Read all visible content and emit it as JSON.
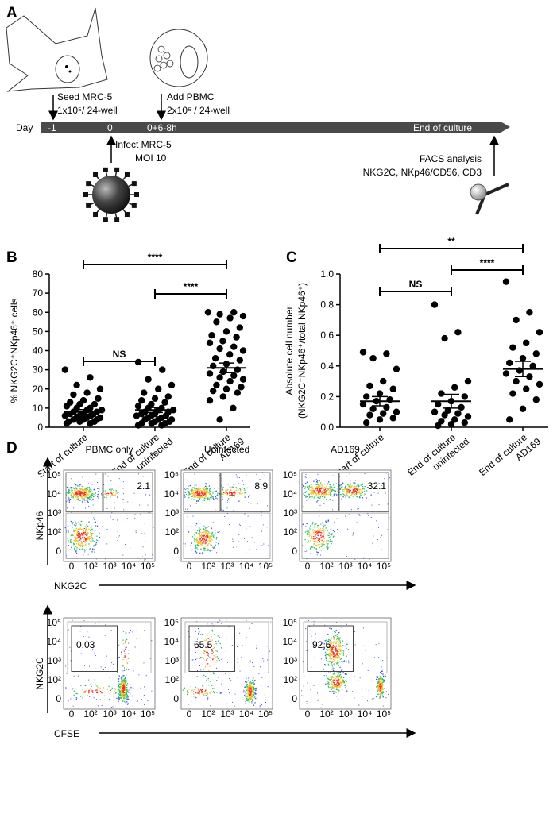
{
  "diagram": {
    "label": "A",
    "day": "Day",
    "days": [
      "-1",
      "0",
      "0+6-8h",
      "End of culture"
    ],
    "seed": [
      "Seed  MRC-5",
      "1x10⁵/ 24-well"
    ],
    "pbmc": [
      "Add PBMC",
      "2x10⁶ / 24-well"
    ],
    "infect": [
      "Infect MRC-5",
      "MOI 10"
    ],
    "facs": [
      "FACS analysis",
      "NKG2C, NKp46/CD56, CD3"
    ]
  },
  "chart_data": [
    {
      "type": "scatter",
      "label": "B",
      "ylabel": [
        "% NKG2C⁺NKp46⁺ cells"
      ],
      "categories": [
        [
          "Start of culture"
        ],
        [
          "End of culture",
          "uninfected"
        ],
        [
          "End of culture",
          "AD169"
        ]
      ],
      "series": [
        {
          "color": "#000000",
          "values": [
            30,
            26,
            22,
            20,
            18,
            17,
            15,
            14,
            13,
            12,
            12,
            11,
            10,
            10,
            9,
            9,
            8,
            8,
            7,
            7,
            7,
            6,
            6,
            6,
            5,
            5,
            5,
            4,
            4,
            4,
            3,
            3,
            3,
            2,
            2
          ]
        },
        {
          "color": "#000000",
          "values": [
            34,
            30,
            25,
            22,
            20,
            18,
            16,
            15,
            14,
            13,
            12,
            11,
            10,
            10,
            9,
            9,
            8,
            8,
            7,
            7,
            6,
            6,
            6,
            5,
            5,
            4,
            4,
            4,
            3,
            3,
            2,
            2,
            2,
            1,
            1
          ]
        },
        {
          "color": "#000000",
          "values": [
            60,
            60,
            59,
            58,
            57,
            55,
            52,
            50,
            48,
            47,
            45,
            44,
            42,
            41,
            40,
            38,
            36,
            35,
            33,
            32,
            30,
            29,
            28,
            27,
            26,
            25,
            24,
            22,
            21,
            20,
            19,
            18,
            16,
            14,
            10,
            4
          ]
        }
      ],
      "means": [
        8,
        9,
        31
      ],
      "sem": [
        1.2,
        1.3,
        2.5
      ],
      "significance": [
        "****",
        "****",
        "NS"
      ],
      "ylim": [
        0,
        80
      ],
      "yticks": [
        0,
        10,
        20,
        30,
        40,
        50,
        60,
        70,
        80
      ]
    },
    {
      "type": "scatter",
      "label": "C",
      "ylabel": [
        "Absolute cell number",
        "(NKG2C⁺NKp46⁺/total NKp46⁺)"
      ],
      "categories": [
        [
          "Start of culture"
        ],
        [
          "End of culture",
          "uninfected"
        ],
        [
          "End of culture",
          "AD169"
        ]
      ],
      "series": [
        {
          "color": "#000000",
          "values": [
            0.49,
            0.48,
            0.45,
            0.38,
            0.3,
            0.27,
            0.25,
            0.22,
            0.2,
            0.18,
            0.17,
            0.15,
            0.13,
            0.12,
            0.1,
            0.09,
            0.08,
            0.06,
            0.05,
            0.03
          ]
        },
        {
          "color": "#000000",
          "values": [
            0.8,
            0.62,
            0.58,
            0.3,
            0.26,
            0.22,
            0.2,
            0.17,
            0.15,
            0.13,
            0.11,
            0.1,
            0.09,
            0.08,
            0.07,
            0.05,
            0.04,
            0.03,
            0.02,
            0.01
          ]
        },
        {
          "color": "#000000",
          "values": [
            0.95,
            0.75,
            0.7,
            0.62,
            0.55,
            0.52,
            0.48,
            0.45,
            0.42,
            0.4,
            0.37,
            0.35,
            0.33,
            0.3,
            0.28,
            0.25,
            0.22,
            0.18,
            0.12,
            0.05
          ]
        }
      ],
      "means": [
        0.17,
        0.17,
        0.38
      ],
      "sem": [
        0.03,
        0.045,
        0.05
      ],
      "significance": [
        "**",
        "****",
        "NS"
      ],
      "ylim": [
        0,
        1.0
      ],
      "yticks": [
        {
          "value": 0,
          "label": "0.0"
        },
        {
          "value": 0.2,
          "label": "0.2"
        },
        {
          "value": 0.4,
          "label": "0.4"
        },
        {
          "value": 0.6,
          "label": "0.6"
        },
        {
          "value": 0.8,
          "label": "0.8"
        },
        {
          "value": 1.0,
          "label": "1.0"
        }
      ]
    }
  ],
  "flow": {
    "label": "D",
    "columns": [
      "PBMC only",
      "Uninfected",
      "AD169"
    ],
    "rows": [
      {
        "ylabel": "NKp46",
        "xlabel": "NKG2C",
        "gates": [
          2.1,
          8.9,
          32.1
        ]
      },
      {
        "ylabel": "NKG2C",
        "xlabel": "CFSE",
        "gates": [
          0.03,
          65.5,
          92.6
        ]
      }
    ],
    "yticks": [
      "10⁵",
      "10⁴",
      "10³",
      "10²",
      "0"
    ],
    "xticks": [
      "0",
      "10²",
      "10³",
      "10⁴",
      "10⁵"
    ]
  }
}
